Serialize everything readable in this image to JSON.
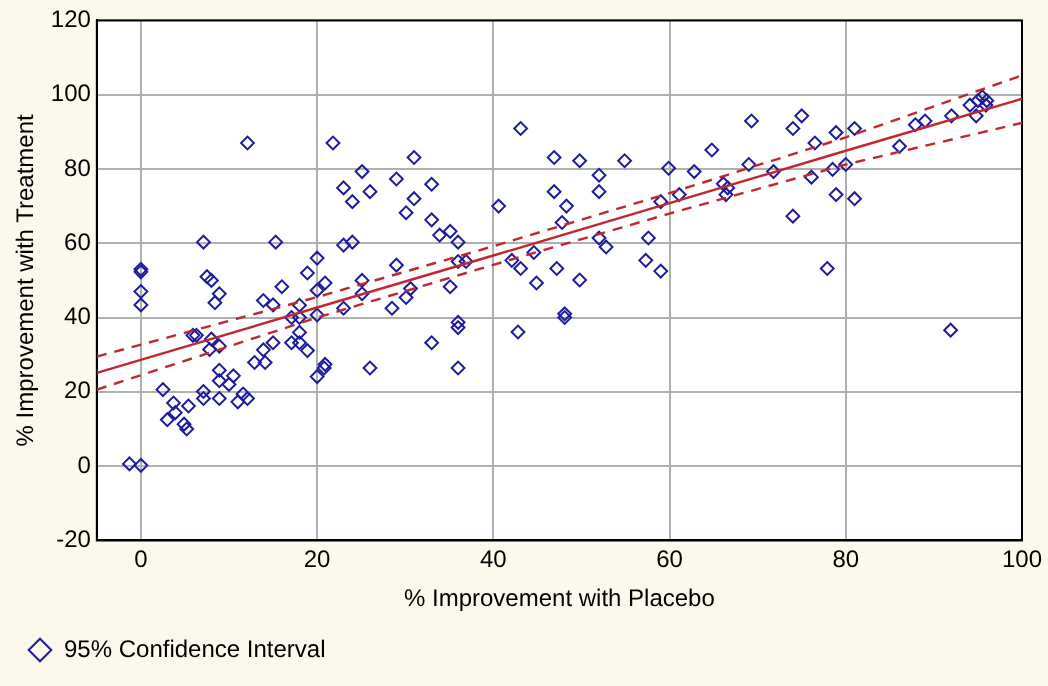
{
  "chart_data": {
    "type": "scatter",
    "xlabel": "% Improvement with Placebo",
    "ylabel": "% Improvement with Treatment",
    "xlim": [
      -5,
      100
    ],
    "xticks": [
      0,
      20,
      40,
      60,
      80,
      100
    ],
    "ylim": [
      -20,
      120
    ],
    "yticks": [
      -20,
      0,
      20,
      40,
      60,
      80,
      100,
      120
    ],
    "grid": true,
    "legend": "bottom left",
    "series": [
      {
        "name": "95% Confidence Interval",
        "marker": "diamond",
        "color": "#1c1c9c",
        "x": [
          -1.3,
          0,
          0,
          0,
          0,
          0,
          2.5,
          3,
          3.7,
          3.9,
          4.9,
          5.2,
          5.4,
          5.9,
          6.3,
          7.1,
          7.1,
          7.1,
          7.5,
          8,
          8,
          7.8,
          8.4,
          8.9,
          8.9,
          8.9,
          8.9,
          8.9,
          10,
          10.5,
          11,
          11.6,
          12.1,
          12.1,
          12.9,
          14.1,
          13.9,
          13.9,
          15,
          15,
          15.3,
          16,
          17.1,
          17.1,
          18,
          18,
          18,
          18,
          18.9,
          18.9,
          20,
          20,
          20,
          20,
          20.9,
          20.9,
          20.8,
          21.8,
          23,
          23,
          23,
          24,
          24,
          25.1,
          25.1,
          25.1,
          26,
          26,
          28.5,
          29,
          29,
          30.1,
          30.1,
          30.6,
          31,
          31,
          33,
          33,
          33,
          33.9,
          35.1,
          35.1,
          36,
          36,
          36,
          36,
          36,
          36.9,
          40.6,
          42.1,
          43.1,
          43.1,
          42.8,
          44.6,
          44.9,
          46.9,
          46.9,
          47.2,
          47.8,
          48.3,
          48.1,
          48.1,
          49.8,
          49.8,
          52,
          52,
          52,
          52.8,
          54.9,
          57.3,
          57.6,
          59,
          59,
          59.9,
          61.1,
          62.8,
          64.8,
          66.1,
          66.4,
          66.6,
          69,
          69.3,
          71.8,
          74,
          74,
          75,
          76.1,
          76.5,
          77.9,
          78.5,
          78.9,
          78.9,
          80,
          81,
          81,
          86.1,
          87.9,
          89,
          91.9,
          92,
          94.1,
          94.8,
          95,
          95.5,
          96,
          95.9
        ],
        "values": [
          0.6,
          0.2,
          53,
          52.3,
          47,
          43.4,
          20.6,
          12.5,
          17,
          14.4,
          11.3,
          10,
          16.2,
          35.2,
          35.2,
          60.3,
          20.1,
          18.2,
          51,
          50,
          34.2,
          31.4,
          44,
          46.4,
          32.3,
          25.8,
          23,
          18.2,
          22,
          24.3,
          17.3,
          19.4,
          18.2,
          87,
          27.9,
          27.9,
          31.3,
          44.6,
          43.4,
          33.2,
          60.3,
          48.3,
          40,
          33.2,
          43.3,
          40,
          36,
          33.2,
          31.1,
          52,
          56,
          47.3,
          40.7,
          24.1,
          49.3,
          27.4,
          26.4,
          87,
          74.9,
          59.5,
          42.5,
          71.2,
          60.3,
          79.3,
          50,
          46.4,
          73.9,
          26.4,
          42.5,
          77.3,
          54.1,
          68.2,
          45.4,
          47.8,
          72,
          83.1,
          75.9,
          66.3,
          33.2,
          62.2,
          63.2,
          48.3,
          60.3,
          55.1,
          38.7,
          37.3,
          26.4,
          55.1,
          70,
          55.4,
          90.9,
          53.2,
          36.1,
          57.5,
          49.3,
          83.1,
          73.9,
          53.2,
          65.6,
          70,
          41,
          40,
          82.2,
          50.1,
          78.3,
          73.9,
          61.4,
          59,
          82.2,
          55.4,
          61.4,
          52.5,
          71.2,
          80.2,
          73.1,
          79.3,
          85.1,
          76,
          73.1,
          74.9,
          81.2,
          92.9,
          79.3,
          90.9,
          67.3,
          94.3,
          77.8,
          87,
          53.2,
          79.9,
          89.8,
          73.1,
          81.2,
          90.9,
          72,
          86.1,
          91.9,
          92.9,
          36.6,
          94.3,
          97.2,
          94.3,
          98.4,
          99.4,
          98.4,
          97.2
        ]
      },
      {
        "type": "line",
        "marker": "none",
        "color": "#c0282f",
        "line_style": "solid",
        "x": [
          -5,
          20,
          40,
          60,
          80,
          100
        ],
        "values": [
          25.1,
          42.7,
          56.7,
          70.8,
          84.9,
          98.9
        ]
      },
      {
        "type": "line",
        "color": "#c0282f",
        "line_style": "dashed",
        "x": [
          -5,
          20,
          40,
          60,
          80,
          100
        ],
        "values": [
          29.5,
          45.5,
          59.2,
          73.5,
          88.5,
          105.2
        ],
        "marker": "none"
      },
      {
        "type": "line",
        "color": "#c0282f",
        "line_style": "dashed",
        "x": [
          -5,
          20,
          40,
          60,
          80,
          100
        ],
        "values": [
          20.6,
          40,
          54.2,
          68,
          81.2,
          92.4
        ],
        "marker": "none"
      }
    ]
  }
}
